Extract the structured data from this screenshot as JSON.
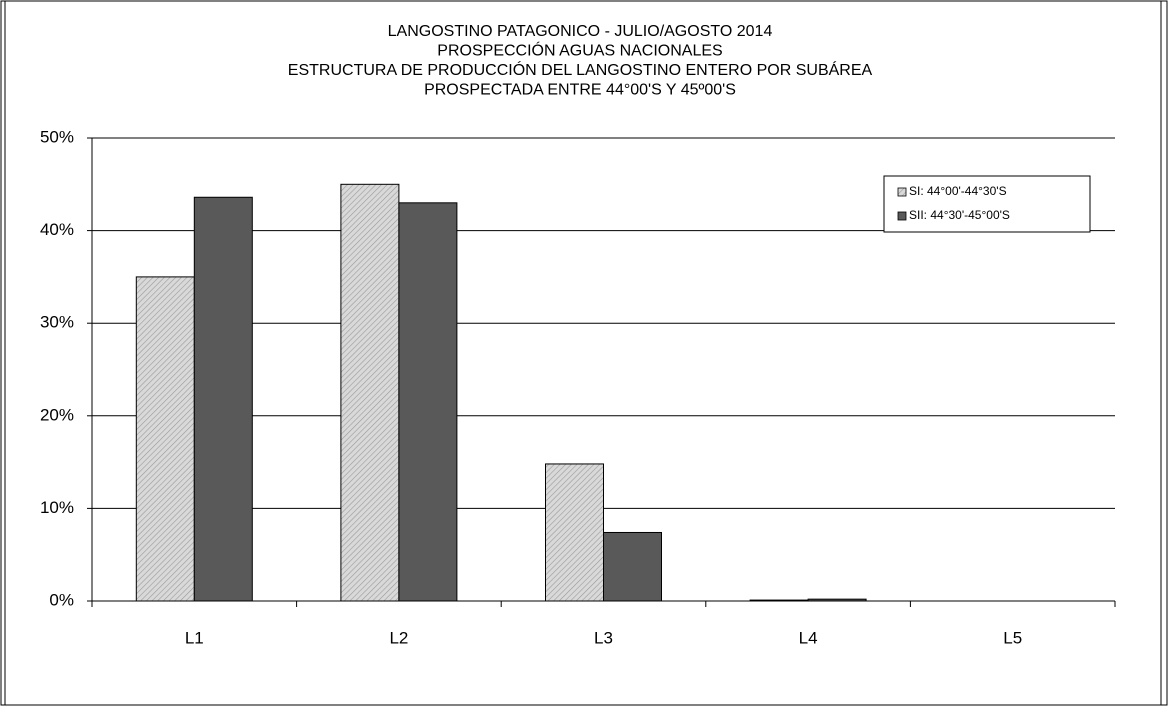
{
  "chart_data": {
    "type": "bar",
    "title": [
      "LANGOSTINO PATAGONICO - JULIO/AGOSTO  2014",
      "PROSPECCIÓN AGUAS NACIONALES",
      "ESTRUCTURA DE PRODUCCIÓN DEL LANGOSTINO ENTERO POR SUBÁREA",
      "PROSPECTADA  ENTRE 44°00'S Y 45º00'S"
    ],
    "categories": [
      "L1",
      "L2",
      "L3",
      "L4",
      "L5"
    ],
    "series": [
      {
        "name": "SI: 44°00'-44°30'S",
        "color": "#d9d9d9",
        "values": [
          35,
          45,
          14.8,
          0.1,
          0
        ]
      },
      {
        "name": "SII: 44°30'-45°00'S",
        "color": "#595959",
        "values": [
          43.6,
          43,
          7.4,
          0.2,
          0
        ]
      }
    ],
    "ylim": [
      0,
      50
    ],
    "yticks": [
      {
        "value": 0,
        "label": "0%"
      },
      {
        "value": 10,
        "label": "10%"
      },
      {
        "value": 20,
        "label": "20%"
      },
      {
        "value": 30,
        "label": "30%"
      },
      {
        "value": 40,
        "label": "40%"
      },
      {
        "value": 50,
        "label": "50%"
      }
    ],
    "grid": true,
    "legend": "upper right"
  }
}
